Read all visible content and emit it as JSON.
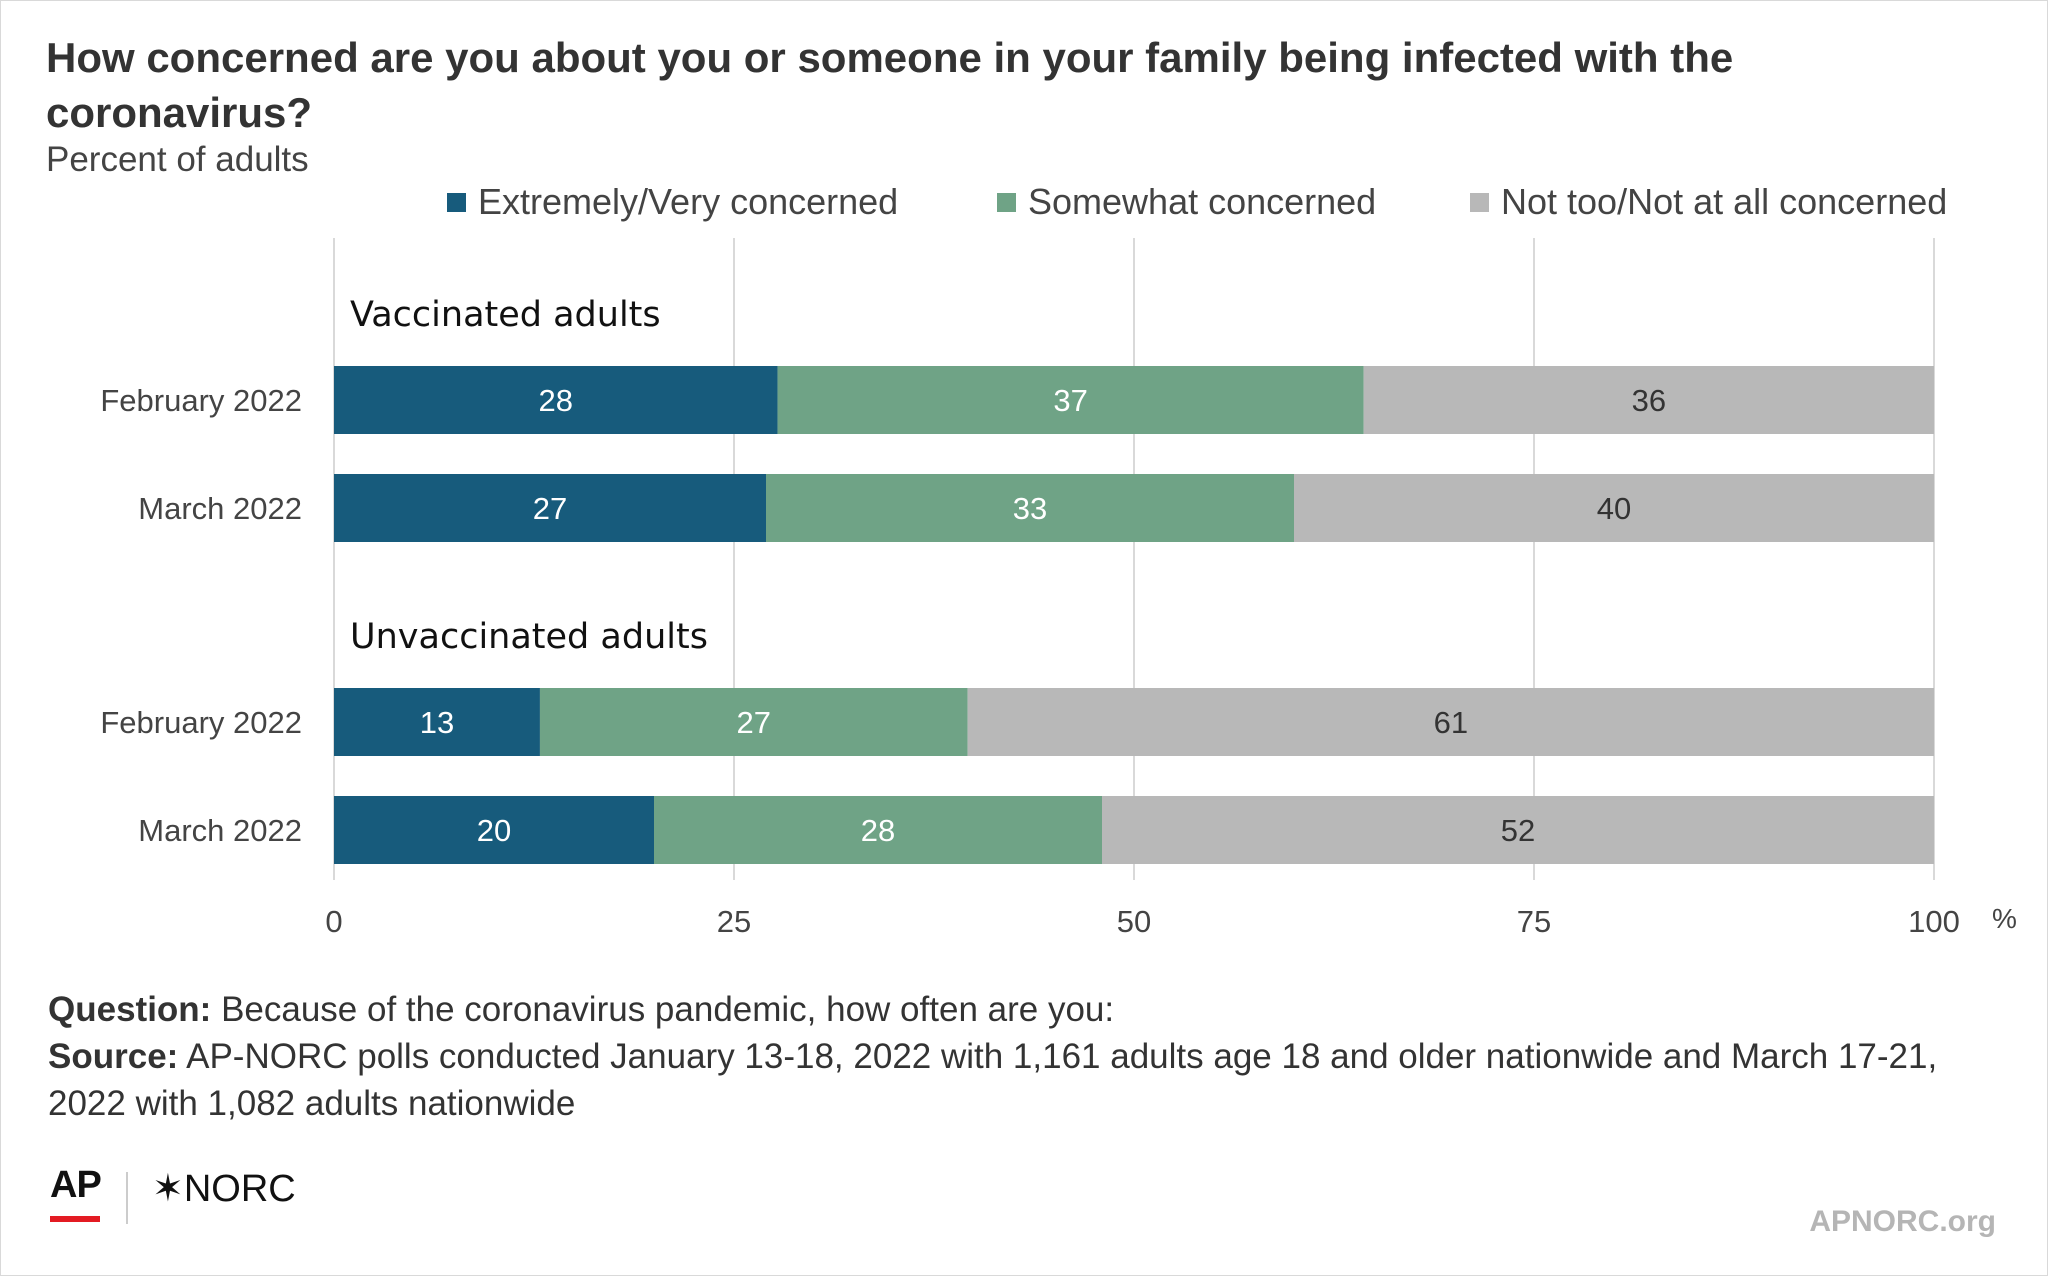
{
  "title": "How concerned are you about you or someone in your family being infected with the coronavirus?",
  "subtitle": "Percent of adults",
  "colors": {
    "extremely_very": "#175b7c",
    "somewhat": "#6fa386",
    "not_too": "#b8b8b8",
    "grid": "#d9d9d9",
    "label_light": "#ffffff",
    "label_dark": "#333333"
  },
  "chart_data": {
    "type": "bar",
    "orientation": "horizontal",
    "stacked": true,
    "xlim": [
      0,
      100
    ],
    "x_ticks": [
      "0",
      "25",
      "50",
      "75",
      "100"
    ],
    "x_unit": "%",
    "grid": true,
    "legend_position": "top",
    "series": [
      {
        "name": "Extremely/Very concerned",
        "key": "extremely_very"
      },
      {
        "name": "Somewhat concerned",
        "key": "somewhat"
      },
      {
        "name": "Not too/Not at all concerned",
        "key": "not_too"
      }
    ],
    "groups": [
      {
        "label": "Vaccinated adults",
        "rows": [
          {
            "category": "February 2022",
            "values": [
              28,
              37,
              36
            ]
          },
          {
            "category": "March 2022",
            "values": [
              27,
              33,
              40
            ]
          }
        ]
      },
      {
        "label": "Unvaccinated adults",
        "rows": [
          {
            "category": "February 2022",
            "values": [
              13,
              27,
              61
            ]
          },
          {
            "category": "March 2022",
            "values": [
              20,
              28,
              52
            ]
          }
        ]
      }
    ]
  },
  "notes": {
    "question_label": "Question:",
    "question_text": "Because of the coronavirus pandemic, how often are you:",
    "source_label": "Source:",
    "source_text": "AP-NORC polls conducted January 13-18, 2022 with 1,161 adults age 18 and older nationwide and March 17-21, 2022 with 1,082 adults nationwide"
  },
  "branding": {
    "ap": "AP",
    "norc": "✶NORC",
    "site": "APNORC.org"
  }
}
